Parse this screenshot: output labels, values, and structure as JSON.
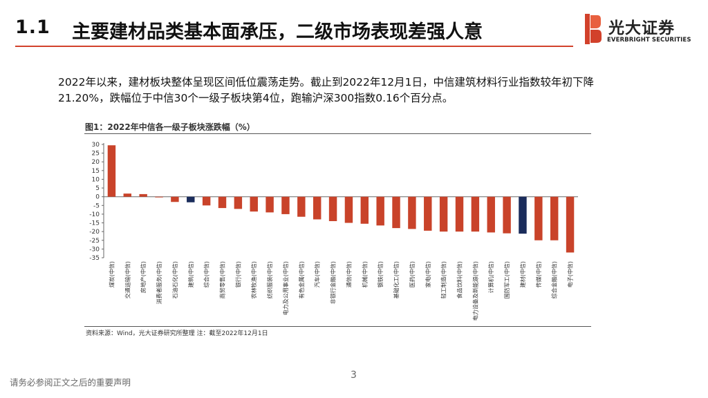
{
  "header": {
    "section_number": "1.1",
    "section_title": "主要建材品类基本面承压，二级市场表现差强人意",
    "brand_cn": "光大证券",
    "brand_en": "EVERBRIGHT SECURITIES"
  },
  "intro_text": "2022年以来，建材板块整体呈现区间低位震荡走势。截止到2022年12月1日，中信建筑材料行业指数较年初下降21.20%，跌幅位于中信30个一级子板块第4位，跑输沪深300指数0.16个百分点。",
  "colors": {
    "accent": "#d2412b",
    "highlight": "#1a2c5b",
    "bar": "#c9432a"
  },
  "chart_data": {
    "type": "bar",
    "title": "图1：2022年中信各一级子板块涨跌幅（%）",
    "ylim": [
      -35,
      30
    ],
    "yticks": [
      30,
      25,
      20,
      15,
      10,
      5,
      0,
      -5,
      -10,
      -15,
      -20,
      -25,
      -30,
      -35
    ],
    "categories": [
      "煤炭(中信)",
      "交通运输(中信)",
      "房地产(中信)",
      "消费者服务(中信)",
      "石油石化(中信)",
      "建筑(中信)",
      "综合(中信)",
      "商贸零售(中信)",
      "银行(中信)",
      "农林牧渔(中信)",
      "纺织服装(中信)",
      "电力及公用事业(中信)",
      "有色金属(中信)",
      "汽车(中信)",
      "非银行金融(中信)",
      "通信(中信)",
      "机械(中信)",
      "钢铁(中信)",
      "基础化工(中信)",
      "医药(中信)",
      "家电(中信)",
      "轻工制造(中信)",
      "食品饮料(中信)",
      "电力设备及新能源(中信)",
      "计算机(中信)",
      "国防军工(中信)",
      "建材(中信)",
      "传媒(中信)",
      "综合金融(中信)",
      "电子(中信)"
    ],
    "values": [
      29.5,
      1.8,
      1.5,
      -0.4,
      -3.0,
      -3.2,
      -5.0,
      -6.5,
      -7.0,
      -8.5,
      -9.0,
      -10.0,
      -11.5,
      -13.0,
      -14.0,
      -15.0,
      -15.5,
      -16.5,
      -18.0,
      -18.5,
      -19.5,
      -20.0,
      -20.0,
      -20.0,
      -20.5,
      -21.0,
      -21.2,
      -25.0,
      -25.0,
      -32.0
    ],
    "highlighted": [
      "建筑(中信)",
      "建材(中信)"
    ],
    "source": "资料来源：Wind，光大证券研究所整理 注：截至2022年12月1日"
  },
  "footer": {
    "page_number": "3",
    "disclaimer": "请务必参阅正文之后的重要声明"
  }
}
